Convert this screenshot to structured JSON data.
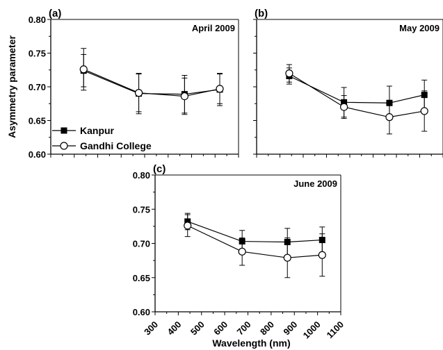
{
  "chart_data": [
    {
      "type": "line",
      "panel_tag": "(a)",
      "title": "April 2009",
      "ylabel": "Asymmetry parameter",
      "xlabel": "",
      "xlim": [
        300,
        1100
      ],
      "ylim": [
        0.6,
        0.8
      ],
      "y_ticks": [
        "0.60",
        "0.65",
        "0.70",
        "0.75",
        "0.80"
      ],
      "x_tick_labels_shown": false,
      "legend": {
        "placement": "bottom-left",
        "entries": [
          "Kanpur",
          "Gandhi College"
        ]
      },
      "x": [
        440,
        675,
        870,
        1020
      ],
      "series": [
        {
          "name": "Kanpur",
          "marker": "filled-square",
          "values": [
            0.724,
            0.69,
            0.689,
            0.696
          ],
          "errors": [
            0.024,
            0.03,
            0.028,
            0.024
          ]
        },
        {
          "name": "Gandhi College",
          "marker": "open-circle",
          "values": [
            0.726,
            0.691,
            0.686,
            0.697
          ],
          "errors": [
            0.031,
            0.028,
            0.027,
            0.022
          ]
        }
      ]
    },
    {
      "type": "line",
      "panel_tag": "(b)",
      "title": "May 2009",
      "xlim": [
        300,
        1100
      ],
      "ylim": [
        0.6,
        0.8
      ],
      "x_tick_labels_shown": false,
      "y_tick_labels_shown": false,
      "x": [
        440,
        675,
        870,
        1020
      ],
      "series": [
        {
          "name": "Kanpur",
          "marker": "filled-square",
          "values": [
            0.716,
            0.677,
            0.676,
            0.688
          ],
          "errors": [
            0.012,
            0.022,
            0.025,
            0.022
          ]
        },
        {
          "name": "Gandhi College",
          "marker": "open-circle",
          "values": [
            0.72,
            0.67,
            0.655,
            0.664
          ],
          "errors": [
            0.013,
            0.017,
            0.025,
            0.03
          ]
        }
      ]
    },
    {
      "type": "line",
      "panel_tag": "(c)",
      "title": "June 2009",
      "xlabel": "Wavelength (nm)",
      "xlim": [
        300,
        1100
      ],
      "ylim": [
        0.6,
        0.8
      ],
      "x_ticks": [
        "300",
        "400",
        "500",
        "600",
        "700",
        "800",
        "900",
        "1000",
        "1100"
      ],
      "y_ticks": [
        "0.60",
        "0.65",
        "0.70",
        "0.75",
        "0.80"
      ],
      "x": [
        440,
        675,
        870,
        1020
      ],
      "series": [
        {
          "name": "Kanpur",
          "marker": "filled-square",
          "values": [
            0.732,
            0.703,
            0.702,
            0.705
          ],
          "errors": [
            0.012,
            0.016,
            0.02,
            0.019
          ]
        },
        {
          "name": "Gandhi College",
          "marker": "open-circle",
          "values": [
            0.726,
            0.688,
            0.679,
            0.683
          ],
          "errors": [
            0.016,
            0.02,
            0.029,
            0.031
          ]
        }
      ]
    }
  ]
}
